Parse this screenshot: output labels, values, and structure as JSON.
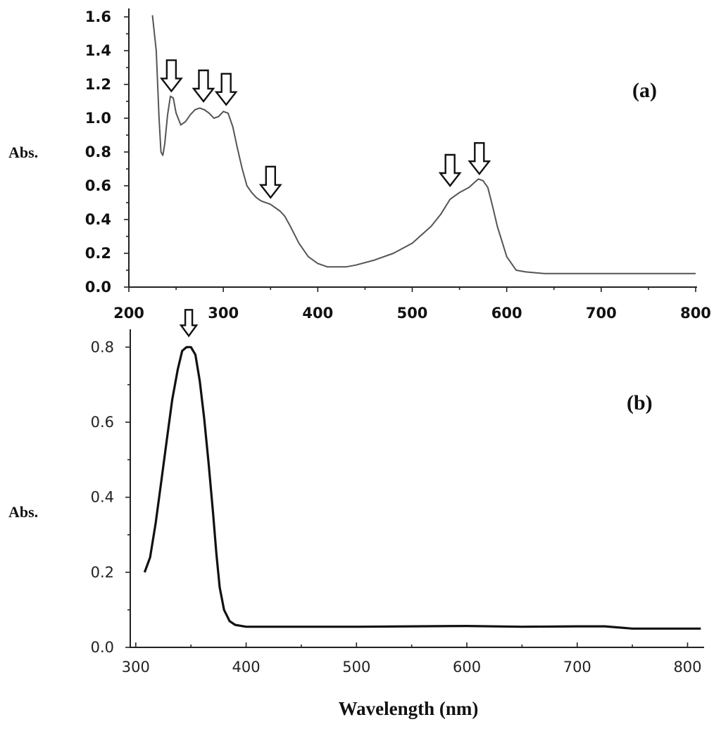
{
  "chart_data": [
    {
      "type": "line",
      "panel_label": "(a)",
      "xlabel": "",
      "ylabel": "Abs.",
      "xlim": [
        200,
        800
      ],
      "ylim": [
        0.0,
        1.65
      ],
      "xticks": [
        "200",
        "300",
        "400",
        "500",
        "600",
        "700",
        "800"
      ],
      "yticks": [
        "0.0",
        "0.2",
        "0.4",
        "0.6",
        "0.8",
        "1.0",
        "1.2",
        "1.4",
        "1.6"
      ],
      "line_color": "#555555",
      "x": [
        225,
        229,
        232,
        234,
        236,
        238,
        241,
        244,
        247,
        250,
        255,
        260,
        265,
        270,
        275,
        280,
        285,
        290,
        295,
        300,
        305,
        310,
        315,
        320,
        325,
        330,
        335,
        340,
        350,
        360,
        365,
        370,
        380,
        390,
        400,
        410,
        420,
        430,
        440,
        460,
        480,
        500,
        520,
        530,
        540,
        550,
        560,
        570,
        575,
        580,
        585,
        590,
        600,
        610,
        620,
        640,
        660,
        700,
        750,
        800
      ],
      "y": [
        1.61,
        1.4,
        1.0,
        0.8,
        0.78,
        0.85,
        1.02,
        1.13,
        1.12,
        1.03,
        0.96,
        0.98,
        1.02,
        1.05,
        1.06,
        1.05,
        1.03,
        1.0,
        1.01,
        1.04,
        1.03,
        0.95,
        0.82,
        0.7,
        0.6,
        0.56,
        0.53,
        0.51,
        0.49,
        0.45,
        0.42,
        0.37,
        0.26,
        0.18,
        0.14,
        0.12,
        0.12,
        0.12,
        0.13,
        0.16,
        0.2,
        0.26,
        0.36,
        0.43,
        0.52,
        0.56,
        0.59,
        0.64,
        0.63,
        0.59,
        0.48,
        0.36,
        0.18,
        0.1,
        0.09,
        0.08,
        0.08,
        0.08,
        0.08,
        0.08
      ],
      "annotations": [
        {
          "type": "arrow",
          "x": 245,
          "y": 1.16
        },
        {
          "type": "arrow",
          "x": 279,
          "y": 1.1
        },
        {
          "type": "arrow",
          "x": 303,
          "y": 1.08
        },
        {
          "type": "arrow",
          "x": 350,
          "y": 0.53
        },
        {
          "type": "arrow",
          "x": 540,
          "y": 0.6
        },
        {
          "type": "arrow",
          "x": 571,
          "y": 0.67
        }
      ]
    },
    {
      "type": "line",
      "panel_label": "(b)",
      "xlabel": "Wavelength (nm)",
      "ylabel": "Abs.",
      "xlim": [
        295,
        815
      ],
      "ylim": [
        0.0,
        0.9
      ],
      "xticks": [
        "300",
        "400",
        "500",
        "600",
        "700",
        "800"
      ],
      "yticks": [
        "0.0",
        "0.2",
        "0.4",
        "0.6",
        "0.8"
      ],
      "line_color": "#111111",
      "x": [
        308,
        313,
        318,
        323,
        328,
        333,
        338,
        342,
        346,
        350,
        354,
        358,
        362,
        366,
        370,
        373,
        376,
        380,
        385,
        390,
        400,
        450,
        500,
        550,
        600,
        650,
        700,
        725,
        750,
        800,
        812
      ],
      "y": [
        0.2,
        0.24,
        0.33,
        0.44,
        0.55,
        0.66,
        0.74,
        0.79,
        0.8,
        0.8,
        0.78,
        0.71,
        0.61,
        0.49,
        0.36,
        0.25,
        0.16,
        0.1,
        0.07,
        0.06,
        0.055,
        0.055,
        0.055,
        0.056,
        0.057,
        0.055,
        0.056,
        0.056,
        0.05,
        0.05,
        0.05
      ],
      "annotations": [
        {
          "type": "arrow",
          "x": 348,
          "y": 0.83
        }
      ]
    }
  ]
}
